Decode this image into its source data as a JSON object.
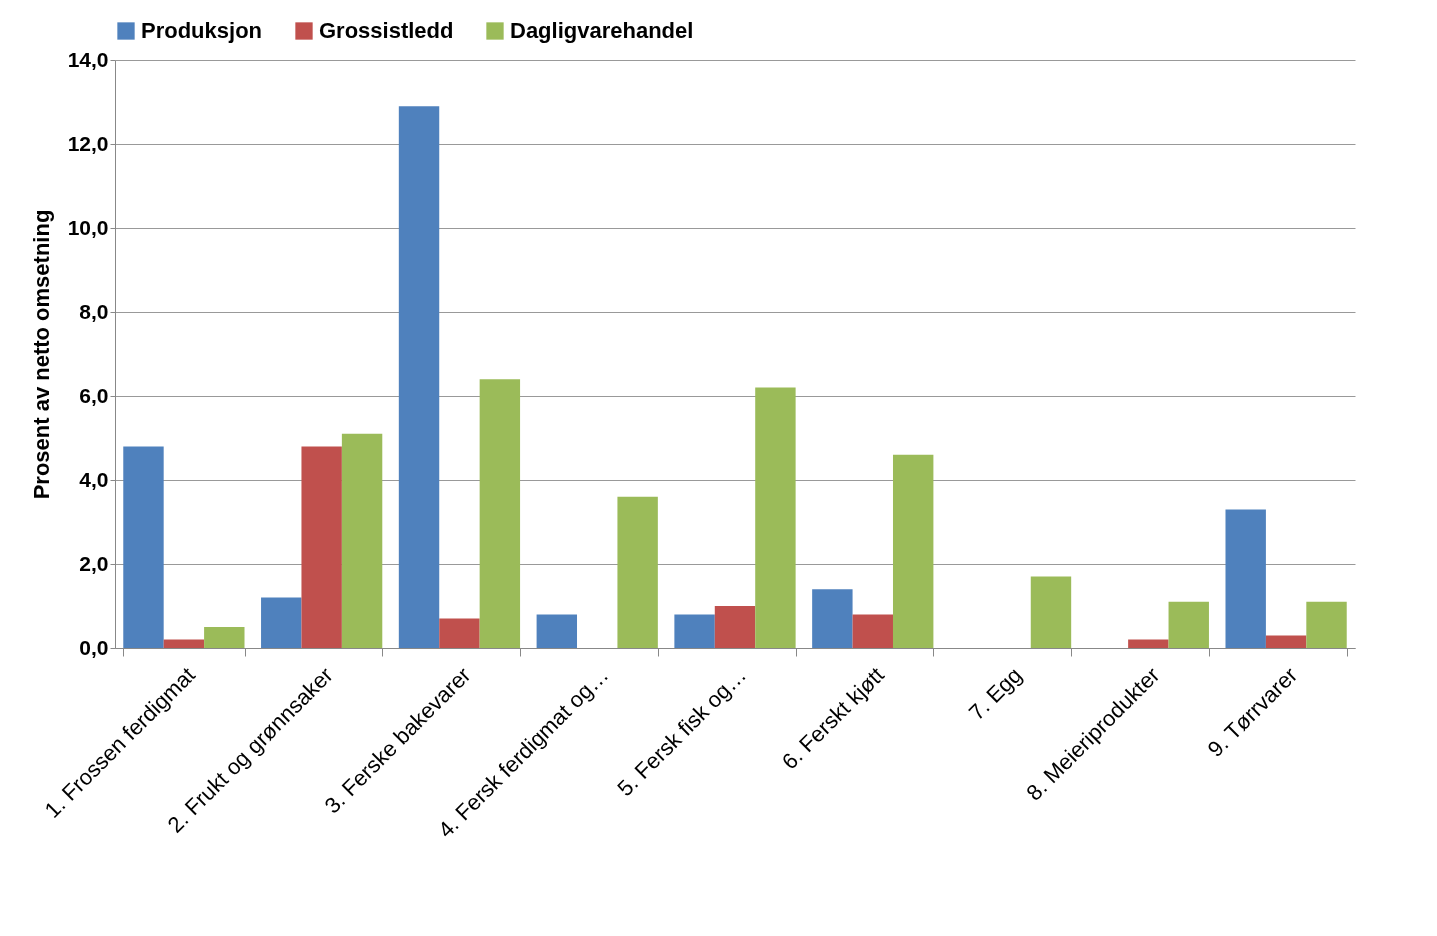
{
  "chart_data": {
    "type": "bar",
    "ylabel": "Prosent av netto omsetning",
    "categories": [
      "1. Frossen ferdigmat",
      "2. Frukt og grønnsaker",
      "3. Ferske bakevarer",
      "4. Fersk ferdigmat og…",
      "5. Fersk fisk og…",
      "6. Ferskt kjøtt",
      "7. Egg",
      "8. Meieriprodukter",
      "9. Tørrvarer"
    ],
    "series": [
      {
        "name": "Produksjon",
        "color": "#4f81bd",
        "values": [
          4.8,
          1.2,
          12.9,
          0.8,
          0.8,
          1.4,
          0,
          0,
          3.3
        ]
      },
      {
        "name": "Grossistledd",
        "color": "#c0504d",
        "values": [
          0.2,
          4.8,
          0.7,
          0,
          1.0,
          0.8,
          0,
          0.2,
          0.3
        ]
      },
      {
        "name": "Dagligvarehandel",
        "color": "#9bbb59",
        "values": [
          0.5,
          5.1,
          6.4,
          3.6,
          6.2,
          4.6,
          1.7,
          1.1,
          1.1
        ]
      }
    ],
    "ylim": [
      0,
      14
    ],
    "yticks": [
      {
        "value": 0,
        "label": "0,0"
      },
      {
        "value": 2,
        "label": "2,0"
      },
      {
        "value": 4,
        "label": "4,0"
      },
      {
        "value": 6,
        "label": "6,0"
      },
      {
        "value": 8,
        "label": "8,0"
      },
      {
        "value": 10,
        "label": "10,0"
      },
      {
        "value": 12,
        "label": "12,0"
      },
      {
        "value": 14,
        "label": "14,0"
      }
    ],
    "grid": "y",
    "legend": "top"
  }
}
